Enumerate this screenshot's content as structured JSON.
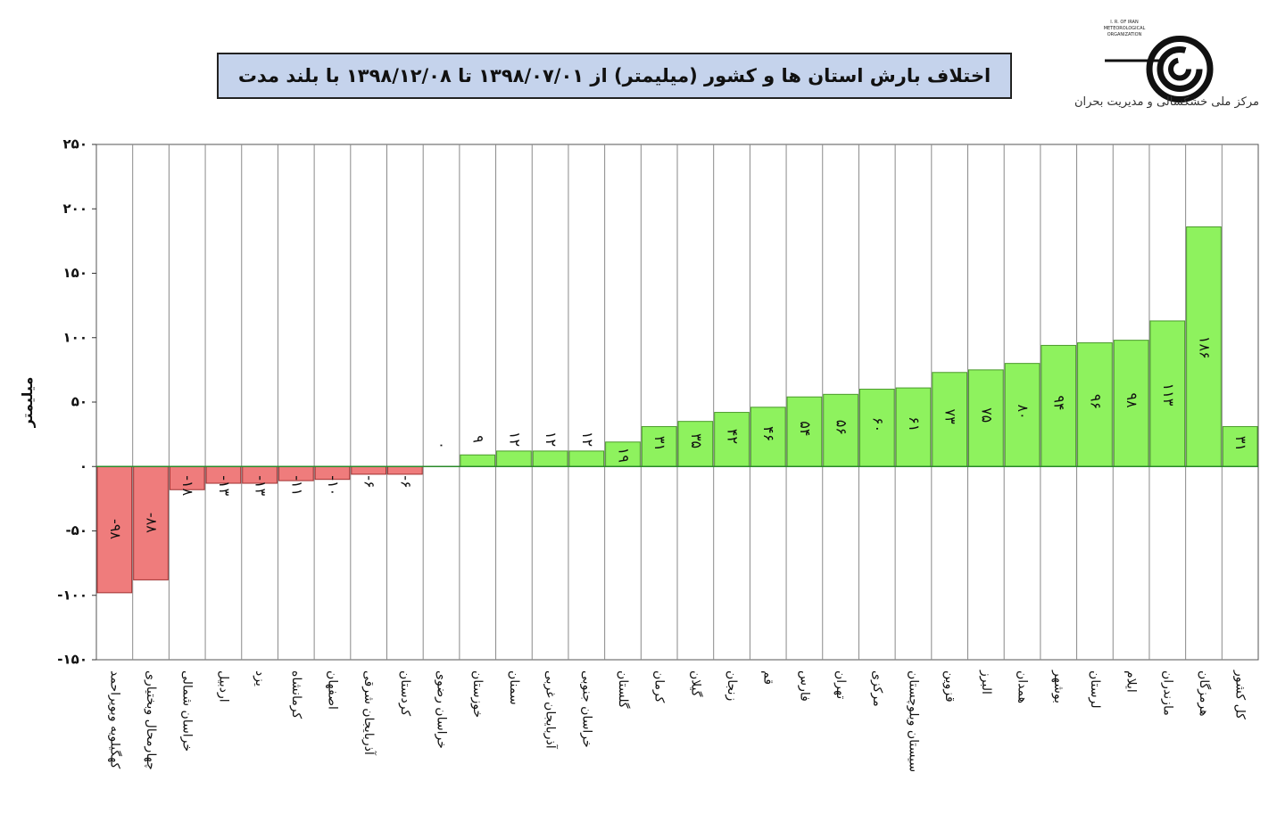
{
  "header": {
    "title": "اختلاف بارش استان ها و کشور (میلیمتر) از ۱۳۹۸/۰۷/۰۱ تا ۱۳۹۸/۱۲/۰۸ با بلند مدت",
    "logo_caption": "مرکز ملی خشکسالی و مدیریت بحران",
    "logo_english": "I. R. OF IRAN METEOROLOGICAL ORGANIZATION",
    "logo_icon": "spiral-logo-icon"
  },
  "chart_data": {
    "type": "bar",
    "title": "اختلاف بارش استان ها و کشور (میلیمتر) از ۱۳۹۸/۰۷/۰۱ تا ۱۳۹۸/۱۲/۰۸ با بلند مدت",
    "xlabel": "",
    "ylabel": "میلیمتر",
    "ylim": [
      -150,
      250
    ],
    "yticks": [
      250,
      200,
      150,
      100,
      50,
      0,
      -50,
      -100,
      -150
    ],
    "ytick_labels": [
      "۲۵۰",
      "۲۰۰",
      "۱۵۰",
      "۱۰۰",
      "۵۰",
      "۰",
      "-۵۰",
      "-۱۰۰",
      "-۱۵۰"
    ],
    "grid": "vertical",
    "colors": {
      "positive": "#8ef25e",
      "negative": "#ef7c7c",
      "positive_border": "#4a9a2a",
      "negative_border": "#a03030"
    },
    "categories": [
      "کهگیلویه وبویراحمد",
      "چهارمحال وبختیاری",
      "خراسان شمالی",
      "اردبیل",
      "یزد",
      "کرمانشاه",
      "اصفهان",
      "آذربایجان شرقی",
      "کردستان",
      "خراسان رضوی",
      "خوزستان",
      "سمنان",
      "آذربایجان غربی",
      "خراسان جنوبی",
      "گلستان",
      "کرمان",
      "گیلان",
      "زنجان",
      "قم",
      "فارس",
      "تهران",
      "مرکزی",
      "سیستان وبلوچستان",
      "قزوین",
      "البرز",
      "همدان",
      "بوشهر",
      "لرستان",
      "ایلام",
      "مازندران",
      "هرمزگان",
      "کل کشور"
    ],
    "values": [
      -98,
      -88,
      -18,
      -13,
      -13,
      -11,
      -10,
      -6,
      -6,
      0,
      9,
      12,
      12,
      12,
      19,
      31,
      35,
      42,
      46,
      54,
      56,
      60,
      61,
      73,
      75,
      80,
      94,
      96,
      98,
      113,
      186,
      31
    ],
    "value_labels": [
      "-۹۸",
      "-۸۸",
      "-۱۸",
      "-۱۳",
      "-۱۳",
      "-۱۱",
      "-۱۰",
      "-۶",
      "-۶",
      "۰",
      "۹",
      "۱۲",
      "۱۲",
      "۱۲",
      "۱۹",
      "۳۱",
      "۳۵",
      "۴۲",
      "۴۶",
      "۵۴",
      "۵۶",
      "۶۰",
      "۶۱",
      "۷۳",
      "۷۵",
      "۸۰",
      "۹۴",
      "۹۶",
      "۹۸",
      "۱۱۳",
      "۱۸۶",
      "۳۱"
    ]
  }
}
